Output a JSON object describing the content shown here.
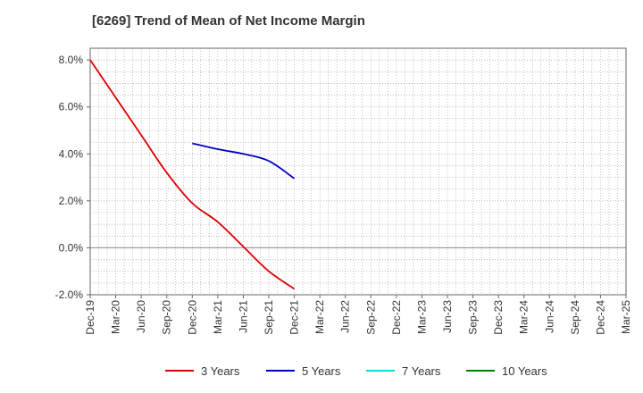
{
  "chart_data": {
    "type": "line",
    "title": "[6269]  Trend of Mean of Net Income Margin",
    "y_ticks": [
      "8.0%",
      "6.0%",
      "4.0%",
      "2.0%",
      "0.0%",
      "-2.0%"
    ],
    "y_tick_values": [
      8,
      6,
      4,
      2,
      0,
      -2
    ],
    "ylim": [
      -2,
      8.5
    ],
    "x_tick_labels": [
      "Dec-19",
      "Mar-20",
      "Jun-20",
      "Sep-20",
      "Dec-20",
      "Mar-21",
      "Jun-21",
      "Sep-21",
      "Dec-21",
      "Mar-22",
      "Jun-22",
      "Sep-22",
      "Dec-22",
      "Mar-23",
      "Jun-23",
      "Sep-23",
      "Dec-23",
      "Mar-24",
      "Jun-24",
      "Sep-24",
      "Dec-24",
      "Mar-25"
    ],
    "grid": true,
    "legend_position": "bottom",
    "series": [
      {
        "name": "3 Years",
        "color": "#e00000",
        "x": [
          "Dec-19",
          "Mar-20",
          "Jun-20",
          "Sep-20",
          "Dec-20",
          "Mar-21",
          "Jun-21",
          "Sep-21",
          "Dec-21"
        ],
        "values": [
          8.0,
          6.4,
          4.8,
          3.2,
          1.9,
          1.1,
          0.05,
          -1.0,
          -1.75
        ]
      },
      {
        "name": "5 Years",
        "color": "#0000c0",
        "x": [
          "Dec-20",
          "Mar-21",
          "Jun-21",
          "Sep-21",
          "Dec-21"
        ],
        "values": [
          4.45,
          4.2,
          4.0,
          3.7,
          2.95
        ]
      },
      {
        "name": "7 Years",
        "color": "#00e0e0",
        "x": [],
        "values": []
      },
      {
        "name": "10 Years",
        "color": "#008000",
        "x": [],
        "values": []
      }
    ]
  }
}
